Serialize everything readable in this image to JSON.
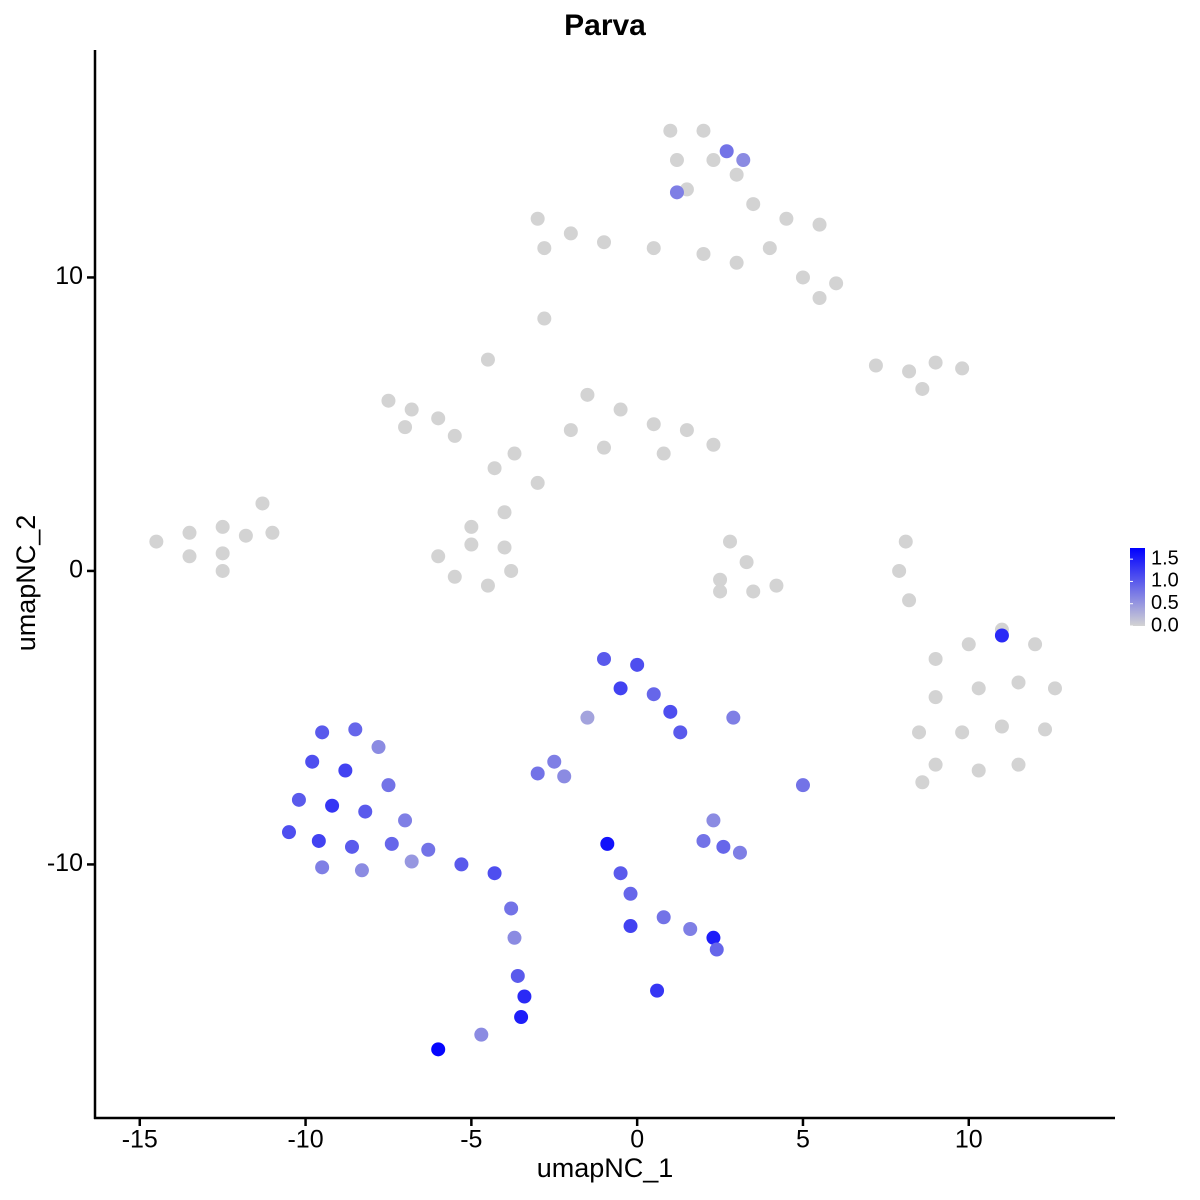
{
  "chart_data": {
    "type": "scatter",
    "title": "Parva",
    "x_label": "umapNC_1",
    "y_label": "umapNC_2",
    "x": [
      1,
      2,
      1.2,
      2.3,
      1.5,
      3,
      3.5,
      4.5,
      5.5,
      4,
      5,
      6,
      5.5,
      -3,
      -2,
      -1,
      0.5,
      2,
      3,
      -2.8,
      -2.8,
      -7.5,
      -6.8,
      -6,
      -7,
      -5.5,
      -4.3,
      -3.7,
      -4.5,
      -3,
      -1.5,
      -0.5,
      0.5,
      1.5,
      2.3,
      -1,
      0.8,
      -2,
      -6,
      -5,
      -4,
      -5.5,
      -4.5,
      -3.8,
      -5,
      -4,
      -14.5,
      -13.5,
      -12.5,
      -13.5,
      -12.5,
      -11.8,
      -11.3,
      -11,
      -12.5,
      2.8,
      3.3,
      2.5,
      3.5,
      4.2,
      2.5,
      7.2,
      8.2,
      9,
      9.8,
      8.6,
      8.1,
      7.9,
      8.2,
      9,
      10,
      11,
      12,
      9,
      10.3,
      11.5,
      12.6,
      8.5,
      9.8,
      11,
      12.3,
      9,
      10.3,
      11.5,
      8.6,
      -9.5,
      -8.5,
      -7.8,
      -9.8,
      -8.8,
      -7.5,
      -10.2,
      -9.2,
      -8.2,
      -7,
      -10.5,
      -9.6,
      -8.6,
      -7.4,
      -6.3,
      -5.3,
      -4.3,
      -9.5,
      -8.3,
      -6.8,
      -3.8,
      -3.7,
      -3.6,
      -3.4,
      -3.5,
      -6,
      -4.7,
      -1,
      0,
      -0.5,
      0.5,
      1,
      1.3,
      -1.5,
      -2.5,
      -3,
      -2.2,
      -0.9,
      -0.5,
      -0.2,
      -0.2,
      0.8,
      1.6,
      2.3,
      2.4,
      0.6,
      2,
      2.6,
      3.1,
      2.3,
      5,
      2.9,
      2.7,
      3.2,
      11,
      1.2
    ],
    "y": [
      15,
      15,
      14,
      14,
      13,
      13.5,
      12.5,
      12,
      11.8,
      11,
      10,
      9.8,
      9.3,
      12,
      11.5,
      11.2,
      11,
      10.8,
      10.5,
      11,
      8.6,
      5.8,
      5.5,
      5.2,
      4.9,
      4.6,
      3.5,
      4,
      7.2,
      3,
      6,
      5.5,
      5,
      4.8,
      4.3,
      4.2,
      4,
      4.8,
      0.5,
      0.9,
      0.8,
      -0.2,
      -0.5,
      0,
      1.5,
      2,
      1,
      1.3,
      1.5,
      0.5,
      0.6,
      1.2,
      2.3,
      1.3,
      0,
      1,
      0.3,
      -0.3,
      -0.7,
      -0.5,
      -0.7,
      7,
      6.8,
      7.1,
      6.9,
      6.2,
      1,
      0,
      -1,
      -3,
      -2.5,
      -2,
      -2.5,
      -4.3,
      -4,
      -3.8,
      -4,
      -5.5,
      -5.5,
      -5.3,
      -5.4,
      -6.6,
      -6.8,
      -6.6,
      -7.2,
      -5.5,
      -5.4,
      -6,
      -6.5,
      -6.8,
      -7.3,
      -7.8,
      -8,
      -8.2,
      -8.5,
      -8.9,
      -9.2,
      -9.4,
      -9.3,
      -9.5,
      -10,
      -10.3,
      -10.1,
      -10.2,
      -9.9,
      -11.5,
      -12.5,
      -13.8,
      -14.5,
      -15.2,
      -16.3,
      -15.8,
      -3,
      -3.2,
      -4,
      -4.2,
      -4.8,
      -5.5,
      -5,
      -6.5,
      -6.9,
      -7,
      -9.3,
      -10.3,
      -11,
      -12.1,
      -11.8,
      -12.2,
      -12.5,
      -12.9,
      -14.3,
      -9.2,
      -9.4,
      -9.6,
      -8.5,
      -7.3,
      -5,
      14.3,
      14,
      -2.2,
      12.9
    ],
    "values": [
      0,
      0,
      0,
      0,
      0,
      0,
      0,
      0,
      0,
      0,
      0,
      0,
      0,
      0,
      0,
      0,
      0,
      0,
      0,
      0,
      0,
      0,
      0,
      0,
      0,
      0,
      0,
      0,
      0,
      0,
      0,
      0,
      0,
      0,
      0,
      0,
      0,
      0,
      0,
      0,
      0,
      0,
      0,
      0,
      0,
      0,
      0,
      0,
      0,
      0,
      0,
      0,
      0,
      0,
      0,
      0,
      0,
      0,
      0,
      0,
      0,
      0,
      0,
      0,
      0,
      0,
      0,
      0,
      0,
      0,
      0,
      0,
      0,
      0,
      0,
      0,
      0,
      0,
      0,
      0,
      0,
      0,
      0,
      0,
      0,
      1,
      0.9,
      0.6,
      1.1,
      1.2,
      0.8,
      1,
      1.3,
      1,
      0.7,
      1.1,
      1.2,
      1,
      0.9,
      0.8,
      1,
      1.1,
      0.7,
      0.6,
      0.5,
      0.8,
      0.6,
      1,
      1.4,
      1.5,
      1.7,
      0.6,
      1,
      1.1,
      1.2,
      0.9,
      1.1,
      1,
      0.4,
      0.7,
      0.8,
      0.6,
      1.6,
      1,
      0.9,
      1.2,
      0.8,
      0.7,
      1.5,
      0.9,
      1.3,
      0.8,
      0.9,
      0.7,
      0.6,
      0.8,
      0.7,
      0.8,
      0.6,
      1.4,
      0.7
    ],
    "xlim": [
      -16.35,
      14.41
    ],
    "ylim": [
      -18.64,
      17.75
    ],
    "xticks": [
      -15,
      -10,
      -5,
      0,
      5,
      10
    ],
    "yticks": [
      -10,
      0,
      10
    ],
    "color_low": "#d3d3d3",
    "color_high": "#0000ff",
    "clim": [
      0,
      1.75
    ],
    "colorbar_ticks": [
      {
        "value": 0,
        "label": "0.0"
      },
      0.5,
      {
        "value": 1,
        "label": "1.0"
      },
      1.5
    ]
  }
}
